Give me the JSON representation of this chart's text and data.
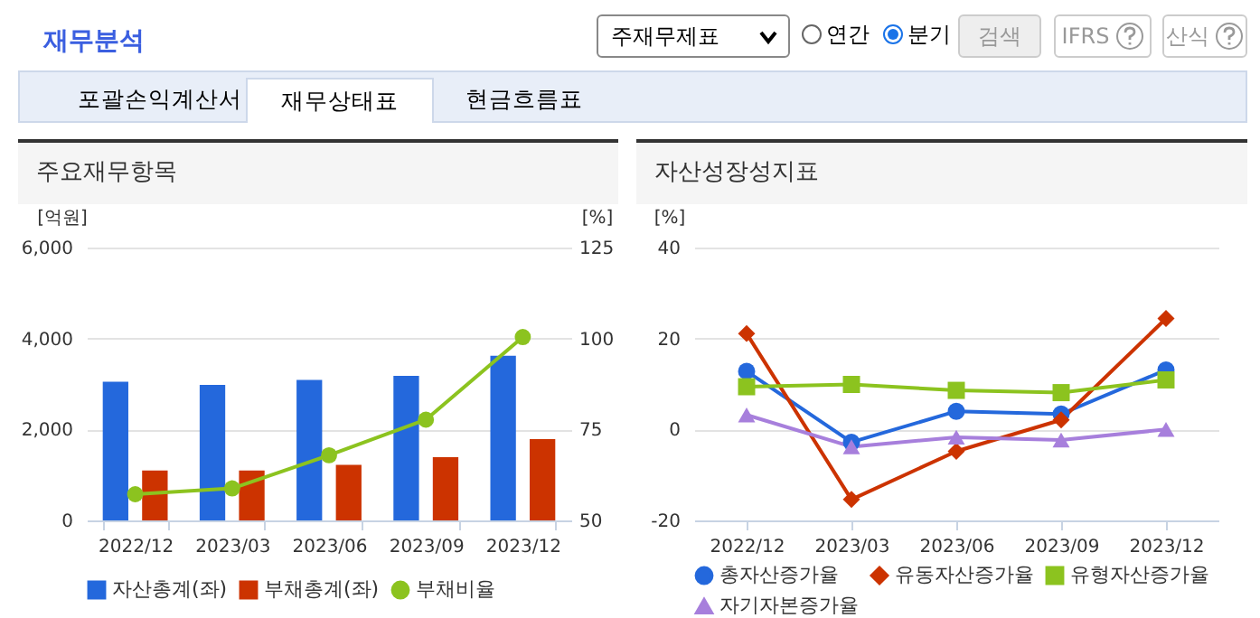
{
  "chart_data": [
    {
      "type": "other",
      "annotations": [
        "재무분석",
        "주재무제표",
        "연간",
        "분기",
        "검색",
        "IFRS",
        "산식",
        "포괄손익계산서",
        "재무상태표",
        "현금흐름표"
      ]
    },
    {
      "type": "bar",
      "title": "주요재무항목",
      "ylabel": "[억원]",
      "y2label": "[%]",
      "categories": [
        "2022/12",
        "2023/03",
        "2023/06",
        "2023/09",
        "2023/12"
      ],
      "series": [
        {
          "name": "자산총계(좌)",
          "color": "#2468dc",
          "values": [
            3050,
            2980,
            3090,
            3180,
            3620
          ]
        },
        {
          "name": "부채총계(좌)",
          "color": "#cc3300",
          "values": [
            1100,
            1100,
            1220,
            1390,
            1790
          ]
        },
        {
          "name": "부채비율",
          "type": "line",
          "axis": "y2",
          "color": "#8cc31f",
          "marker": "circle",
          "values": [
            57.2,
            58.8,
            67.9,
            77.7,
            100.4
          ]
        }
      ],
      "ylim": [
        0,
        6000
      ],
      "yticks": [
        0,
        {
          "value": 2000,
          "label": "2,000"
        },
        {
          "value": 4000,
          "label": "4,000"
        },
        {
          "value": 6000,
          "label": "6,000"
        }
      ],
      "y2lim": [
        50,
        125
      ],
      "y2ticks": [
        50,
        75,
        100,
        125
      ],
      "grid": "y",
      "legend": "bottom"
    },
    {
      "type": "line",
      "title": "자산성장성지표",
      "ylabel": "[%]",
      "categories": [
        "2022/12",
        "2023/03",
        "2023/06",
        "2023/09",
        "2023/12"
      ],
      "series": [
        {
          "name": "총자산증가율",
          "color": "#2468dc",
          "marker": "circle",
          "values": [
            12.8,
            -2.8,
            4.0,
            3.4,
            13.1
          ]
        },
        {
          "name": "유동자산증가율",
          "color": "#cc3300",
          "marker": "diamond",
          "values": [
            21.1,
            -15.4,
            -4.8,
            2.1,
            24.4
          ]
        },
        {
          "name": "유형자산증가율",
          "color": "#8cc31f",
          "marker": "square",
          "values": [
            9.4,
            9.9,
            8.6,
            8.1,
            10.9
          ]
        },
        {
          "name": "자기자본증가율",
          "color": "#a77fdc",
          "marker": "triangle",
          "values": [
            3.2,
            -3.8,
            -1.7,
            -2.3,
            0
          ]
        }
      ],
      "ylim": [
        -20,
        40
      ],
      "yticks": [
        -20,
        0,
        20,
        40
      ],
      "grid": "y",
      "legend": "bottom"
    }
  ]
}
